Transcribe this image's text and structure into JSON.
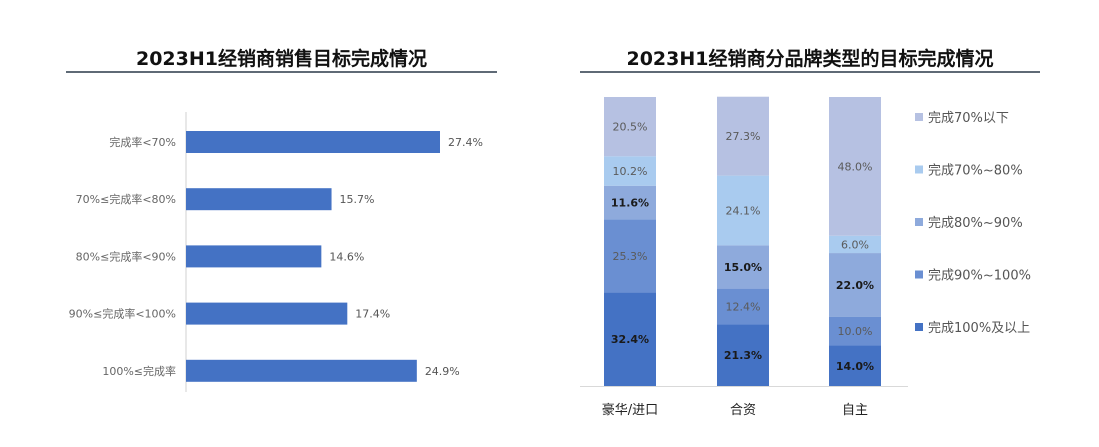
{
  "chart_data": [
    {
      "type": "bar",
      "orientation": "horizontal",
      "title": "2023H1经销商销售目标完成情况",
      "categories": [
        "完成率<70%",
        "70%≤完成率<80%",
        "80%≤完成率<90%",
        "90%≤完成率<100%",
        "100%≤完成率"
      ],
      "values": [
        27.4,
        15.7,
        14.6,
        17.4,
        24.9
      ],
      "data_labels": [
        "27.4%",
        "15.7%",
        "14.6%",
        "17.4%",
        "24.9%"
      ],
      "unit": "%",
      "color": "#4472c4",
      "grid": false
    },
    {
      "type": "bar",
      "stacked": true,
      "title": "2023H1经销商分品牌类型的目标完成情况",
      "categories": [
        "豪华/进口",
        "合资",
        "自主"
      ],
      "series": [
        {
          "name": "完成100%及以上",
          "values": [
            32.4,
            21.3,
            14.0
          ],
          "color": "#4472c4"
        },
        {
          "name": "完成90%~100%",
          "values": [
            25.3,
            12.4,
            10.0
          ],
          "color": "#6a8fd2"
        },
        {
          "name": "完成80%~90%",
          "values": [
            11.6,
            15.0,
            22.0
          ],
          "color": "#8eaadc"
        },
        {
          "name": "完成70%~80%",
          "values": [
            10.2,
            24.1,
            6.0
          ],
          "color": "#a9cbef"
        },
        {
          "name": "完成70%以下",
          "values": [
            20.5,
            27.3,
            48.0
          ],
          "color": "#b6c1e2"
        }
      ],
      "legend_order": [
        "完成70%以下",
        "完成70%~80%",
        "完成80%~90%",
        "完成90%~100%",
        "完成100%及以上"
      ],
      "legend_position": "right",
      "ylim": [
        0,
        100
      ],
      "grid": false
    }
  ]
}
